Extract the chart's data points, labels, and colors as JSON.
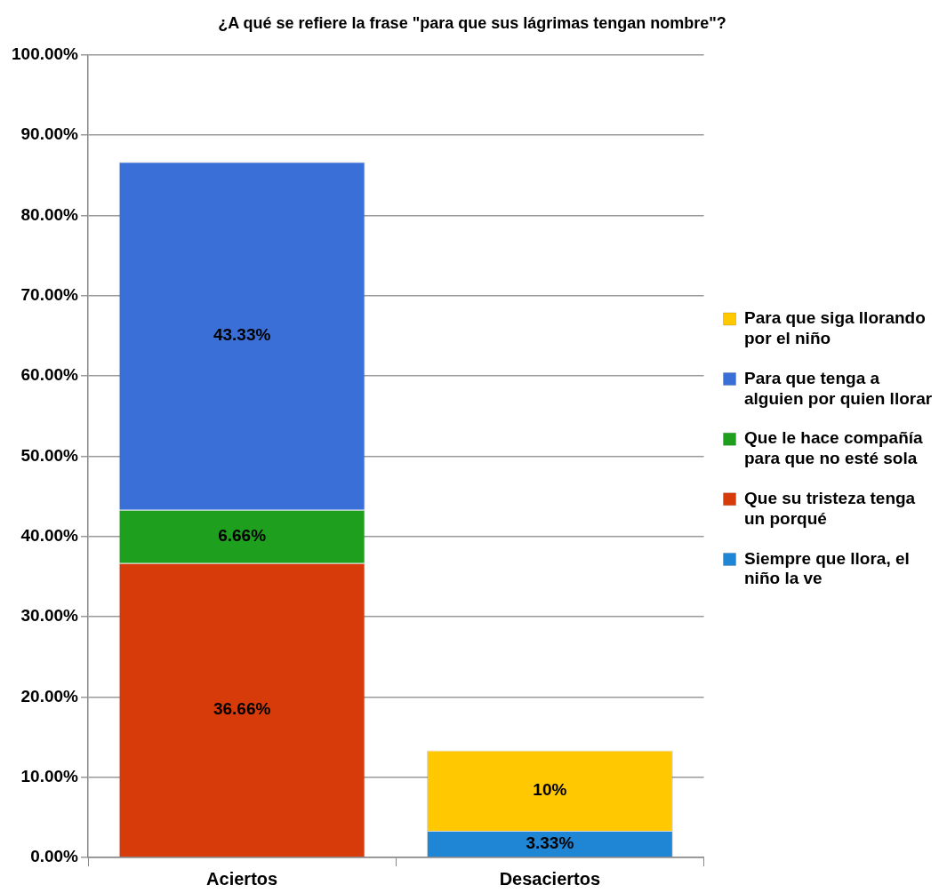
{
  "chart_data": {
    "type": "bar",
    "stacked": true,
    "title": "¿A qué se refiere la frase \"para que sus lágrimas tengan nombre\"?",
    "categories": [
      "Aciertos",
      "Desaciertos"
    ],
    "series": [
      {
        "name": "Siempre que llora, el niño la ve",
        "color": "#1f86d6",
        "values": [
          null,
          3.33
        ],
        "value_labels": [
          null,
          "3.33%"
        ]
      },
      {
        "name": "Que su tristeza tenga un porqué",
        "color": "#d83b0a",
        "values": [
          36.66,
          null
        ],
        "value_labels": [
          "36.66%",
          null
        ]
      },
      {
        "name": "Que le hace compañía para que no esté sola",
        "color": "#1ea01e",
        "values": [
          6.66,
          null
        ],
        "value_labels": [
          "6.66%",
          null
        ]
      },
      {
        "name": "Para que tenga a alguien por quien llorar",
        "color": "#3a6fd8",
        "values": [
          43.33,
          null
        ],
        "value_labels": [
          "43.33%",
          null
        ]
      },
      {
        "name": "Para que siga llorando por el niño",
        "color": "#ffc800",
        "values": [
          null,
          10
        ],
        "value_labels": [
          null,
          "10%"
        ]
      }
    ],
    "ylim": [
      0,
      100
    ],
    "yticks": [
      {
        "value": 0,
        "label": "0.00%"
      },
      {
        "value": 10,
        "label": "10.00%"
      },
      {
        "value": 20,
        "label": "20.00%"
      },
      {
        "value": 30,
        "label": "30.00%"
      },
      {
        "value": 40,
        "label": "40.00%"
      },
      {
        "value": 50,
        "label": "50.00%"
      },
      {
        "value": 60,
        "label": "60.00%"
      },
      {
        "value": 70,
        "label": "70.00%"
      },
      {
        "value": 80,
        "label": "80.00%"
      },
      {
        "value": 90,
        "label": "90.00%"
      },
      {
        "value": 100,
        "label": "100.00%"
      }
    ],
    "grid": "y",
    "legend": "right"
  }
}
